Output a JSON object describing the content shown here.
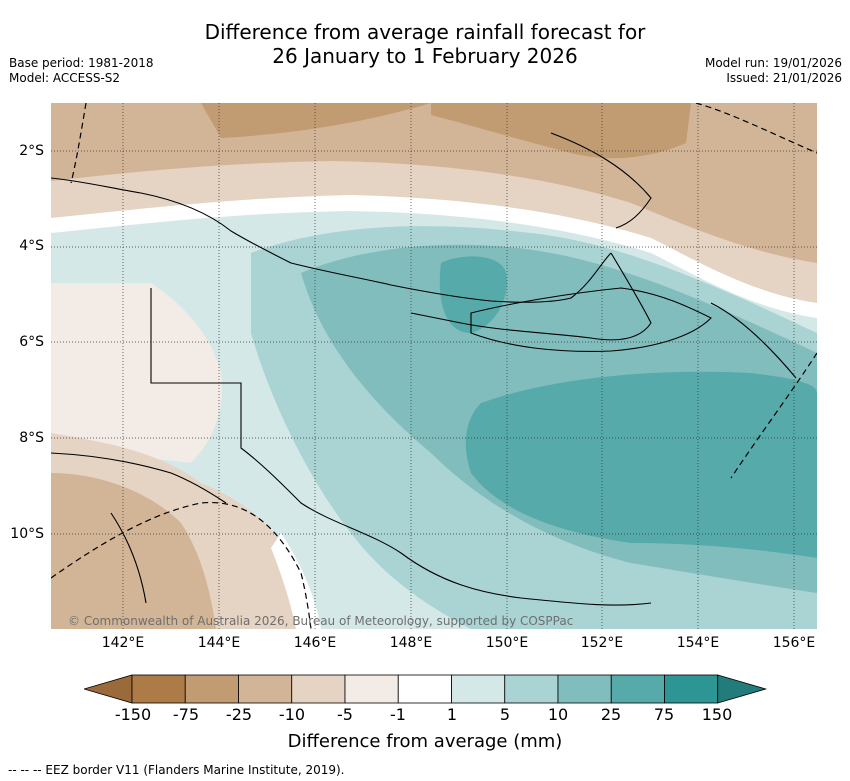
{
  "title_line1": "Difference from average rainfall forecast for",
  "title_line2": "26 January to 1 February 2026",
  "meta_left": {
    "base_period": "Base period: 1981-2018",
    "model": "Model: ACCESS-S2"
  },
  "meta_right": {
    "model_run": "Model run: 19/01/2026",
    "issued": "Issued: 21/01/2026"
  },
  "map": {
    "lat_labels": [
      "2°S",
      "4°S",
      "6°S",
      "8°S",
      "10°S"
    ],
    "lon_labels": [
      "142°E",
      "144°E",
      "146°E",
      "148°E",
      "150°E",
      "152°E",
      "154°E",
      "156°E"
    ],
    "copyright": "© Commonwealth of Australia 2026, Bureau of Meteorology, supported by COSPPac"
  },
  "colorbar": {
    "ticks": [
      "-150",
      "-75",
      "-25",
      "-10",
      "-5",
      "-1",
      "1",
      "5",
      "10",
      "25",
      "75",
      "150"
    ],
    "colors": [
      "#9b6a3a",
      "#ad7c46",
      "#c19b71",
      "#d2b596",
      "#e5d3c3",
      "#f3ebe5",
      "#ffffff",
      "#d5e8e8",
      "#aad3d3",
      "#82bdbd",
      "#57aaaa",
      "#2e9595",
      "#227c7c"
    ],
    "label": "Difference from average (mm)"
  },
  "footer": "--  --  -- EEZ border V11 (Flanders Marine Institute, 2019)."
}
